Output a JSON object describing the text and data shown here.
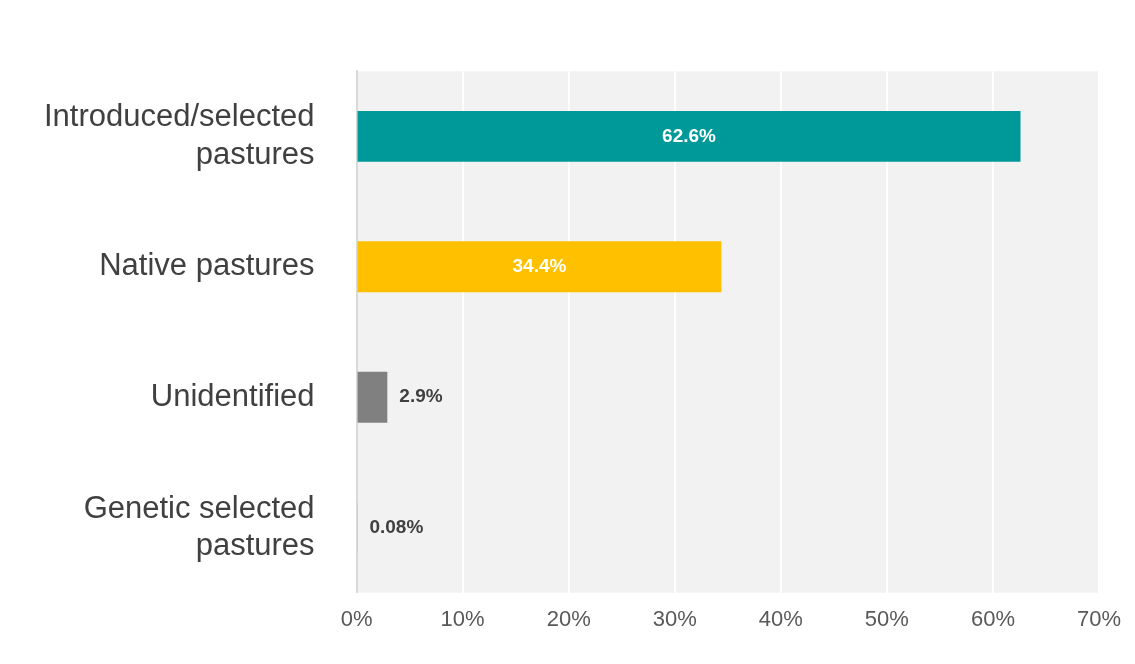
{
  "chart_data": {
    "type": "bar",
    "orientation": "horizontal",
    "categories": [
      "Introduced/selected pastures",
      "Native pastures",
      "Unidentified",
      "Genetic selected pastures"
    ],
    "values": [
      62.6,
      34.4,
      2.9,
      0.08
    ],
    "colors": [
      "#009999",
      "#ffc000",
      "#808080",
      "#a5a5a5"
    ],
    "value_labels": [
      "62.6%",
      "34.4%",
      "2.9%",
      "0.08%"
    ],
    "xlim": [
      0,
      70
    ],
    "xticks": [
      {
        "value": 0,
        "label": "0%"
      },
      {
        "value": 10,
        "label": "10%"
      },
      {
        "value": 20,
        "label": "20%"
      },
      {
        "value": 30,
        "label": "30%"
      },
      {
        "value": 40,
        "label": "40%"
      },
      {
        "value": 50,
        "label": "50%"
      },
      {
        "value": 60,
        "label": "60%"
      },
      {
        "value": 70,
        "label": "70%"
      }
    ],
    "grid": "x",
    "legend": false
  }
}
